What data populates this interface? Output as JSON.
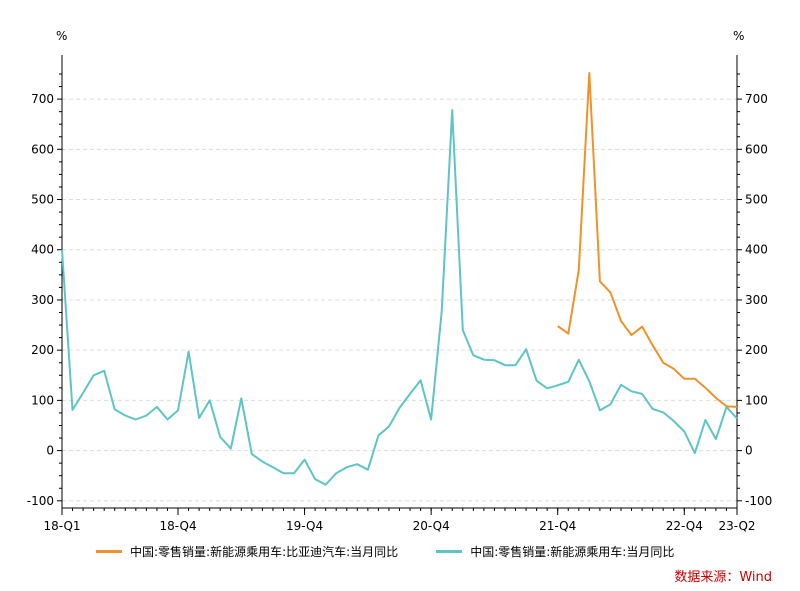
{
  "chart_data": {
    "type": "line",
    "unit_left": "%",
    "unit_right": "%",
    "ylim": [
      -100,
      750
    ],
    "yticks": [
      -100,
      0,
      100,
      200,
      300,
      400,
      500,
      600,
      700
    ],
    "x_tick_labels": [
      {
        "label": "18-Q1",
        "index": 0
      },
      {
        "label": "18-Q4",
        "index": 11
      },
      {
        "label": "19-Q4",
        "index": 23
      },
      {
        "label": "20-Q4",
        "index": 35
      },
      {
        "label": "21-Q4",
        "index": 47
      },
      {
        "label": "22-Q4",
        "index": 59
      },
      {
        "label": "23-Q2",
        "index": 64
      }
    ],
    "x_count": 65,
    "grid": "horizontal dashed",
    "legend_position": "bottom",
    "series": [
      {
        "name": "中国:零售销量:新能源乘用车:比亚迪汽车:当月同比",
        "color": "#f0922b",
        "start_index": 47,
        "values": [
          248,
          233,
          360,
          752,
          337,
          315,
          258,
          230,
          247,
          210,
          175,
          163,
          143,
          143,
          125,
          105,
          88,
          87
        ]
      },
      {
        "name": "中国:零售销量:新能源乘用车:当月同比",
        "color": "#5ec4c6",
        "start_index": 0,
        "values": [
          400,
          81,
          115,
          150,
          159,
          82,
          70,
          62,
          70,
          87,
          62,
          80,
          197,
          65,
          100,
          27,
          4,
          104,
          -7,
          -22,
          -33,
          -45,
          -45,
          -18,
          -57,
          -68,
          -45,
          -33,
          -27,
          -38,
          30,
          48,
          85,
          113,
          140,
          62,
          277,
          678,
          240,
          190,
          181,
          180,
          170,
          170,
          202,
          139,
          124,
          130,
          137,
          181,
          138,
          80,
          92,
          131,
          118,
          113,
          83,
          76,
          59,
          38,
          -5,
          61,
          23,
          87,
          64
        ]
      }
    ],
    "source": "数据来源：Wind"
  }
}
